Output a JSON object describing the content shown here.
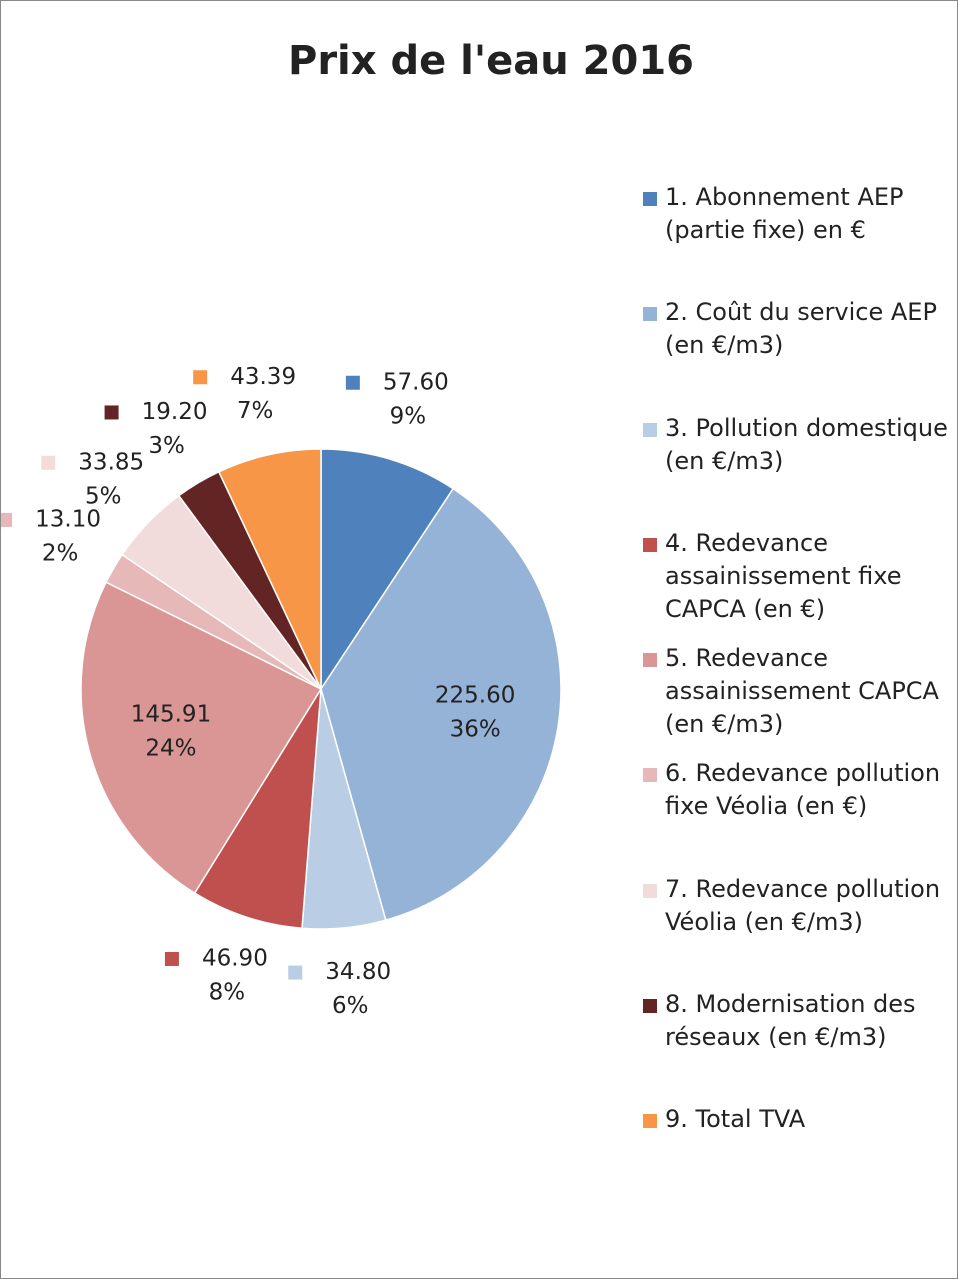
{
  "chart_data": {
    "type": "pie",
    "title": "Prix de l'eau 2016",
    "categories": [
      "1. Abonnement AEP (partie fixe) en €",
      "2. Coût du service AEP (en €/m3)",
      "3. Pollution domestique (en €/m3)",
      "4. Redevance assainissement fixe CAPCA (en €)",
      "5. Redevance assainissement CAPCA (en €/m3)",
      "6. Redevance pollution fixe Véolia (en €)",
      "7. Redevance pollution Véolia (en €/m3)",
      "8. Modernisation des réseaux (en €/m3)",
      "9. Total TVA"
    ],
    "values": [
      57.6,
      225.6,
      34.8,
      46.9,
      145.91,
      13.1,
      33.85,
      19.2,
      43.39
    ],
    "value_labels": [
      "57.60",
      "225.60",
      "34.80",
      "46.90",
      "145.91",
      "13.10",
      "33.85",
      "19.20",
      "43.39"
    ],
    "percent_labels": [
      "9%",
      "36%",
      "6%",
      "8%",
      "24%",
      "2%",
      "5%",
      "3%",
      "7%"
    ],
    "colors": [
      "#4f81bd",
      "#95b3d7",
      "#b9cde5",
      "#c0504d",
      "#d99694",
      "#e6b9b8",
      "#f2dcdb",
      "#632523",
      "#f79646"
    ],
    "legend": "right"
  }
}
